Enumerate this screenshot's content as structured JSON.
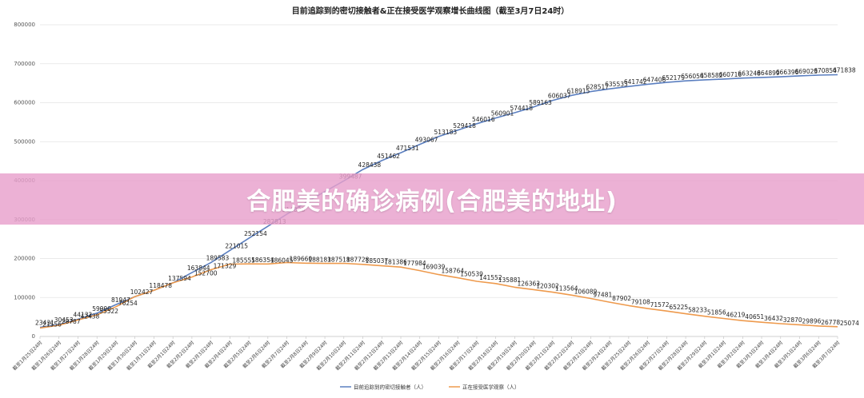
{
  "banner": {
    "title": "合肥美的确诊病例(合肥美的地址)"
  },
  "colors": {
    "series1": "#5b7fc0",
    "series2": "#ee9a4d",
    "banner": "#e8a0cc"
  },
  "chart_data": {
    "type": "line",
    "title": "目前追踪到的密切接触者&正在接受医学观察增长曲线图（截至3月7日24时）",
    "xlabel": "",
    "ylabel": "",
    "ylim": [
      0,
      800000
    ],
    "yticks": [
      0,
      100000,
      200000,
      300000,
      400000,
      500000,
      600000,
      700000,
      800000
    ],
    "grid": true,
    "legend_position": "bottom",
    "categories": [
      "截至1月25日24时",
      "截至1月26日24时",
      "截至1月27日24时",
      "截至1月28日24时",
      "截至1月29日24时",
      "截至1月30日24时",
      "截至1月31日24时",
      "截至2月1日24时",
      "截至2月2日24时",
      "截至2月3日24时",
      "截至2月4日24时",
      "截至2月5日24时",
      "截至2月6日24时",
      "截至2月7日24时",
      "截至2月8日24时",
      "截至2月9日24时",
      "截至2月10日24时",
      "截至2月11日24时",
      "截至2月12日24时",
      "截至2月13日24时",
      "截至2月14日24时",
      "截至2月15日24时",
      "截至2月16日24时",
      "截至2月17日24时",
      "截至2月18日24时",
      "截至2月19日24时",
      "截至2月20日24时",
      "截至2月21日24时",
      "截至2月22日24时",
      "截至2月23日24时",
      "截至2月24日24时",
      "截至2月25日24时",
      "截至2月26日24时",
      "截至2月27日24时",
      "截至2月28日24时",
      "截至2月29日24时",
      "截至3月1日24时",
      "截至3月2日24时",
      "截至3月3日24时",
      "截至3月4日24时",
      "截至3月5日24时",
      "截至3月6日24时",
      "截至3月7日24时"
    ],
    "series": [
      {
        "name": "目前追踪到的密切接触者（人）",
        "values": [
          23431,
          30453,
          44132,
          59990,
          81947,
          102427,
          118478,
          137594,
          163844,
          189583,
          221015,
          252154,
          282813,
          314028,
          344000,
          371905,
          399487,
          428438,
          451462,
          471531,
          493067,
          513183,
          529418,
          546016,
          560901,
          574418,
          589163,
          606037,
          618915,
          628517,
          635533,
          641742,
          647406,
          652179,
          656054,
          658582,
          660716,
          663248,
          664899,
          666396,
          669023,
          670854,
          671838
        ],
        "labels": [
          "23431",
          "30453",
          "44132",
          "59990",
          "81947",
          "102427",
          "118478",
          "137594",
          "163844",
          "189583",
          "221015",
          "252154",
          "282813",
          "314028",
          "",
          "",
          "399487",
          "428438",
          "451462",
          "471531",
          "493067",
          "513183",
          "529418",
          "546016",
          "560901",
          "574418",
          "589163",
          "606037",
          "618915",
          "628517",
          "635533",
          "641742",
          "647406",
          "652179",
          "656054",
          "658582",
          "660716",
          "663248",
          "664899",
          "666396",
          "669023",
          "670854",
          "671838"
        ]
      },
      {
        "name": "正在接受医学观察（人）",
        "values": [
          21556,
          28787,
          42438,
          55522,
          76254,
          102427,
          118478,
          137594,
          152700,
          171329,
          185555,
          186354,
          186045,
          189660,
          188183,
          187518,
          187728,
          185037,
          181386,
          177984,
          169039,
          158764,
          150539,
          141552,
          135881,
          126363,
          120302,
          113564,
          106089,
          97481,
          87902,
          79108,
          71572,
          65225,
          58233,
          51856,
          46219,
          40651,
          36432,
          32870,
          29896,
          26778,
          25074
        ],
        "labels": [
          "21556",
          "28787",
          "42438",
          "55522",
          "76254",
          "",
          "",
          "",
          "152700",
          "171329",
          "185555",
          "186354",
          "186045",
          "189660",
          "188183",
          "187518",
          "187728",
          "185037",
          "181386",
          "177984",
          "169039",
          "158764",
          "150539",
          "141552",
          "135881",
          "126363",
          "120302",
          "113564",
          "106089",
          "97481",
          "87902",
          "79108",
          "71572",
          "65225",
          "58233",
          "51856",
          "46219",
          "40651",
          "36432",
          "32870",
          "29896",
          "26778",
          "25074"
        ]
      }
    ]
  }
}
